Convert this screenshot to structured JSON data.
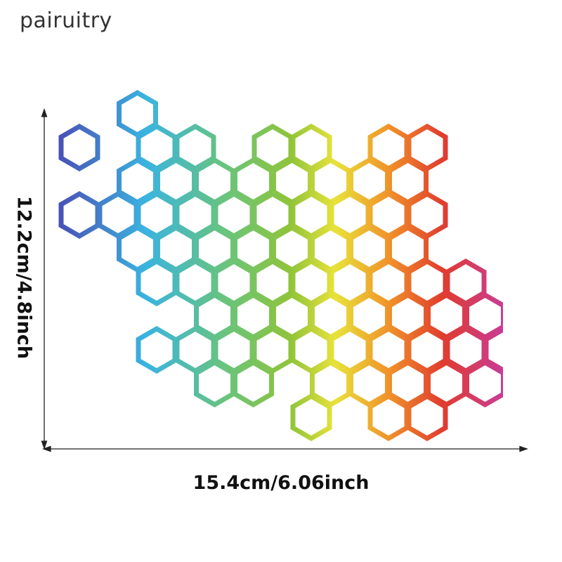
{
  "brand": "pairuitry",
  "dimensions": {
    "width_label": "15.4cm/6.06inch",
    "height_label": "12.2cm/4.8inch"
  },
  "product": {
    "pattern": "rainbow-hexagon-honeycomb",
    "gradient": [
      "#4a4db4",
      "#3ab4e0",
      "#6ac47a",
      "#8fc43a",
      "#e8e23a",
      "#f0922a",
      "#e03c2e",
      "#c83c9a"
    ]
  }
}
